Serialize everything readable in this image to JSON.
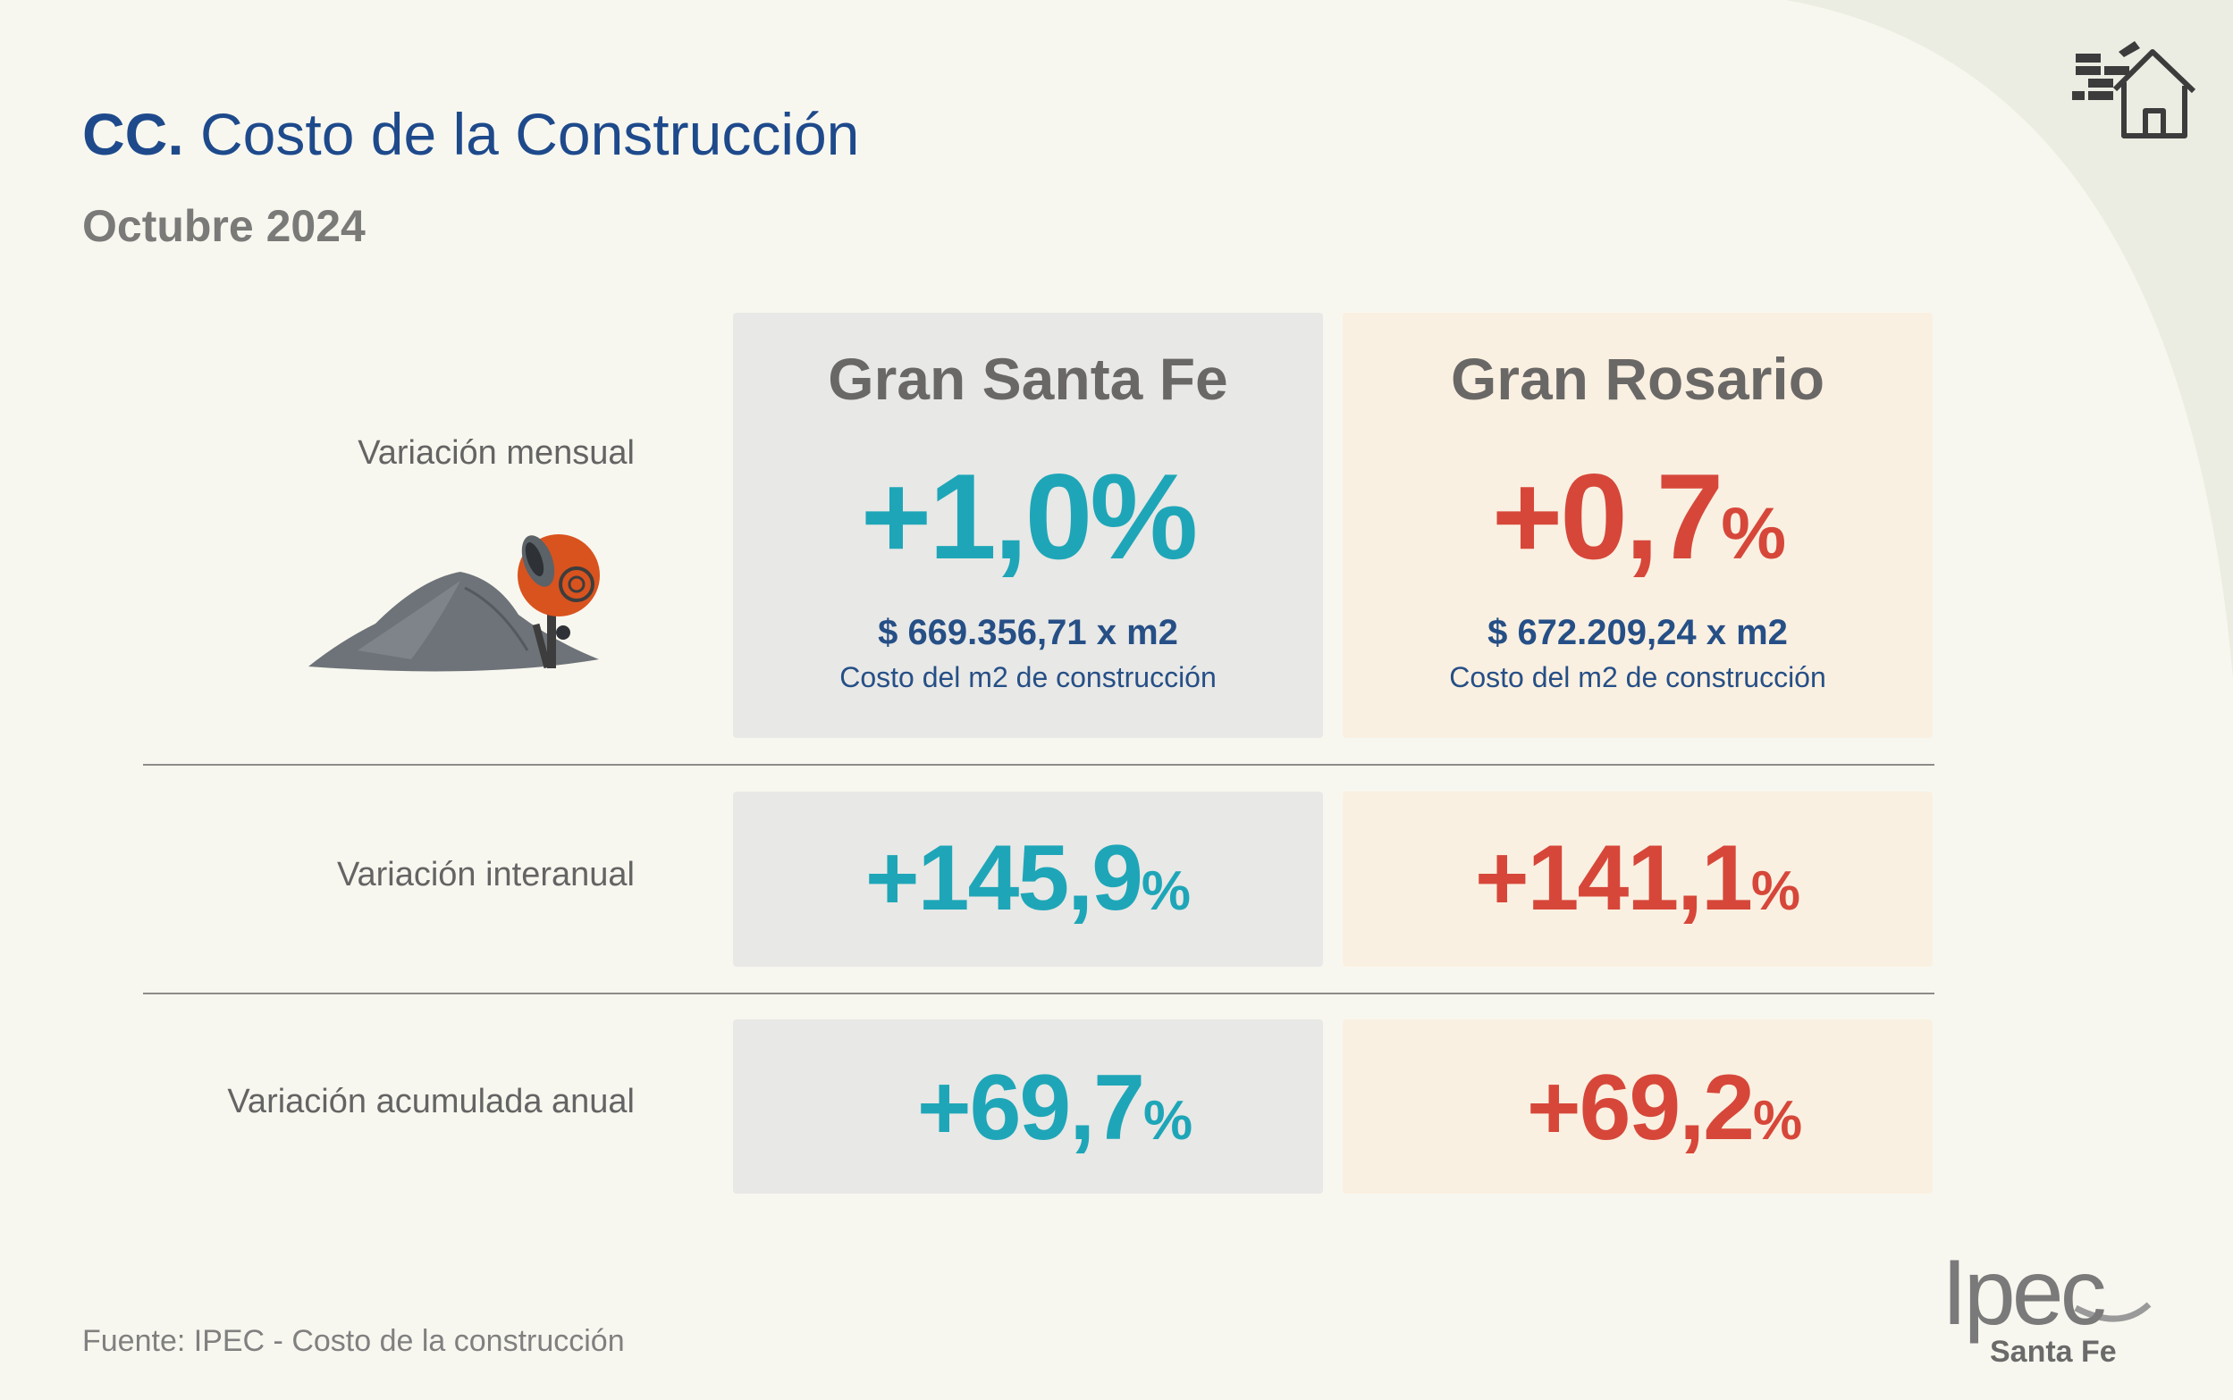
{
  "header": {
    "title_prefix": "CC.",
    "title": "Costo de la Construcción",
    "subtitle": "Octubre 2024"
  },
  "rows": {
    "monthly": "Variación mensual",
    "interannual": "Variación interanual",
    "accumulated": "Variación acumulada anual"
  },
  "regions": {
    "gran_santa_fe": {
      "name": "Gran Santa Fe",
      "monthly_num": "+1,0",
      "monthly_pct": "%",
      "price": "$ 669.356,71 x m2",
      "price_note": "Costo del m2 de construcción",
      "interannual_num": "+145,9",
      "interannual_pct": "%",
      "accumulated_num": "+69,7",
      "accumulated_pct": "%",
      "color": "#1ea6b8"
    },
    "gran_rosario": {
      "name": "Gran Rosario",
      "monthly_num": "+0,7",
      "monthly_pct": "%",
      "price": "$ 672.209,24 x m2",
      "price_note": "Costo del m2 de construcción",
      "interannual_num": "+141,1",
      "interannual_pct": "%",
      "accumulated_num": "+69,2",
      "accumulated_pct": "%",
      "color": "#d6473a"
    }
  },
  "footer": {
    "source": "Fuente: IPEC - Costo de la construcción",
    "logo_text": "Ipec",
    "logo_sub": "Santa Fe"
  },
  "icons": {
    "house": "house-bricks-icon",
    "mixer": "cement-mixer-icon"
  }
}
